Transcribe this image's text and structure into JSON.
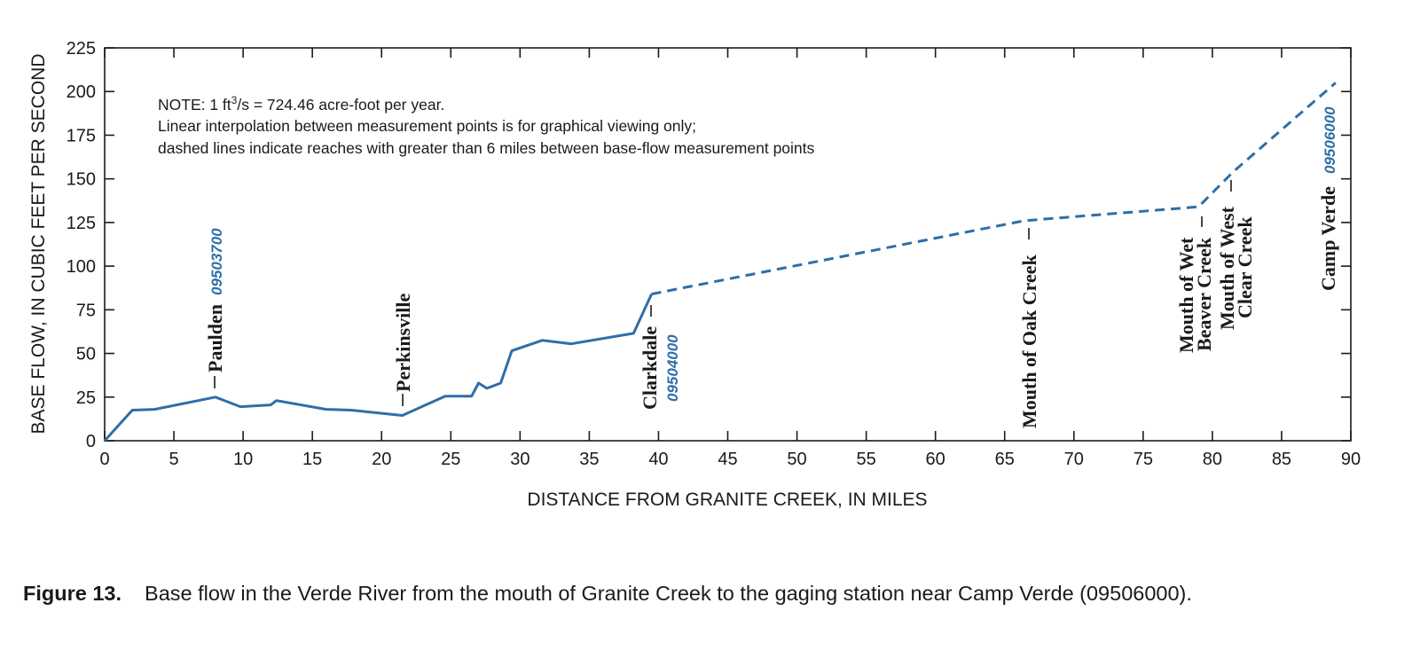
{
  "chart_data": {
    "type": "line",
    "xlabel": "DISTANCE FROM GRANITE CREEK, IN MILES",
    "ylabel": "BASE FLOW, IN CUBIC FEET PER SECOND",
    "xlim": [
      0,
      90
    ],
    "ylim": [
      0,
      225
    ],
    "x_ticks": [
      "0",
      "5",
      "10",
      "15",
      "20",
      "25",
      "30",
      "35",
      "40",
      "45",
      "50",
      "55",
      "60",
      "65",
      "70",
      "75",
      "80",
      "85",
      "90"
    ],
    "y_ticks": [
      "0",
      "25",
      "50",
      "75",
      "100",
      "125",
      "150",
      "175",
      "200",
      "225"
    ],
    "grid": false,
    "line_color": "#2f6ea8",
    "series": [
      {
        "style": "solid",
        "points": [
          [
            0,
            0
          ],
          [
            2,
            17.5
          ],
          [
            3.6,
            18
          ],
          [
            8,
            25
          ],
          [
            9.8,
            19.5
          ],
          [
            12,
            20.5
          ],
          [
            12.4,
            23
          ],
          [
            16,
            18
          ],
          [
            17.8,
            17.5
          ],
          [
            21.5,
            14.5
          ],
          [
            24.6,
            25.5
          ],
          [
            26.5,
            25.5
          ],
          [
            27,
            33
          ],
          [
            27.6,
            30
          ],
          [
            28.6,
            33
          ],
          [
            29.4,
            51.5
          ],
          [
            31.6,
            57.5
          ],
          [
            33.7,
            55.5
          ],
          [
            38.2,
            61.5
          ],
          [
            39.5,
            84
          ]
        ]
      },
      {
        "style": "dashed",
        "points": [
          [
            39.5,
            84
          ],
          [
            66.4,
            126
          ],
          [
            79,
            134
          ],
          [
            81.5,
            154
          ],
          [
            88.9,
            205
          ]
        ]
      }
    ],
    "annotations": [
      {
        "name": "Paulden",
        "station": "09503700",
        "x": 8
      },
      {
        "name": "Perkinsville",
        "station": "",
        "x": 21.5
      },
      {
        "name": "Clarkdale",
        "station": "09504000",
        "x": 39.5
      },
      {
        "name": "Mouth of Oak Creek",
        "station": "",
        "x": 66.4
      },
      {
        "name_lines": [
          "Mouth of Wet",
          "Beaver Creek"
        ],
        "x": 79
      },
      {
        "name_lines": [
          "Mouth of West",
          "Clear Creek"
        ],
        "x": 81.5
      },
      {
        "name": "Camp Verde",
        "station": "09506000",
        "x": 88.9
      }
    ],
    "note": {
      "line1_prefix": "NOTE:  1 ft",
      "line1_sup": "3",
      "line1_suffix": "/s = 724.46 acre-foot per year.",
      "line2": "Linear interpolation between measurement points is for graphical viewing only;",
      "line3": "dashed lines indicate reaches with greater than 6 miles between base-flow measurement points"
    }
  },
  "caption": {
    "label": "Figure 13.",
    "text": "Base flow in the Verde River from the mouth of Granite Creek to the gaging station near Camp Verde (09506000)."
  }
}
